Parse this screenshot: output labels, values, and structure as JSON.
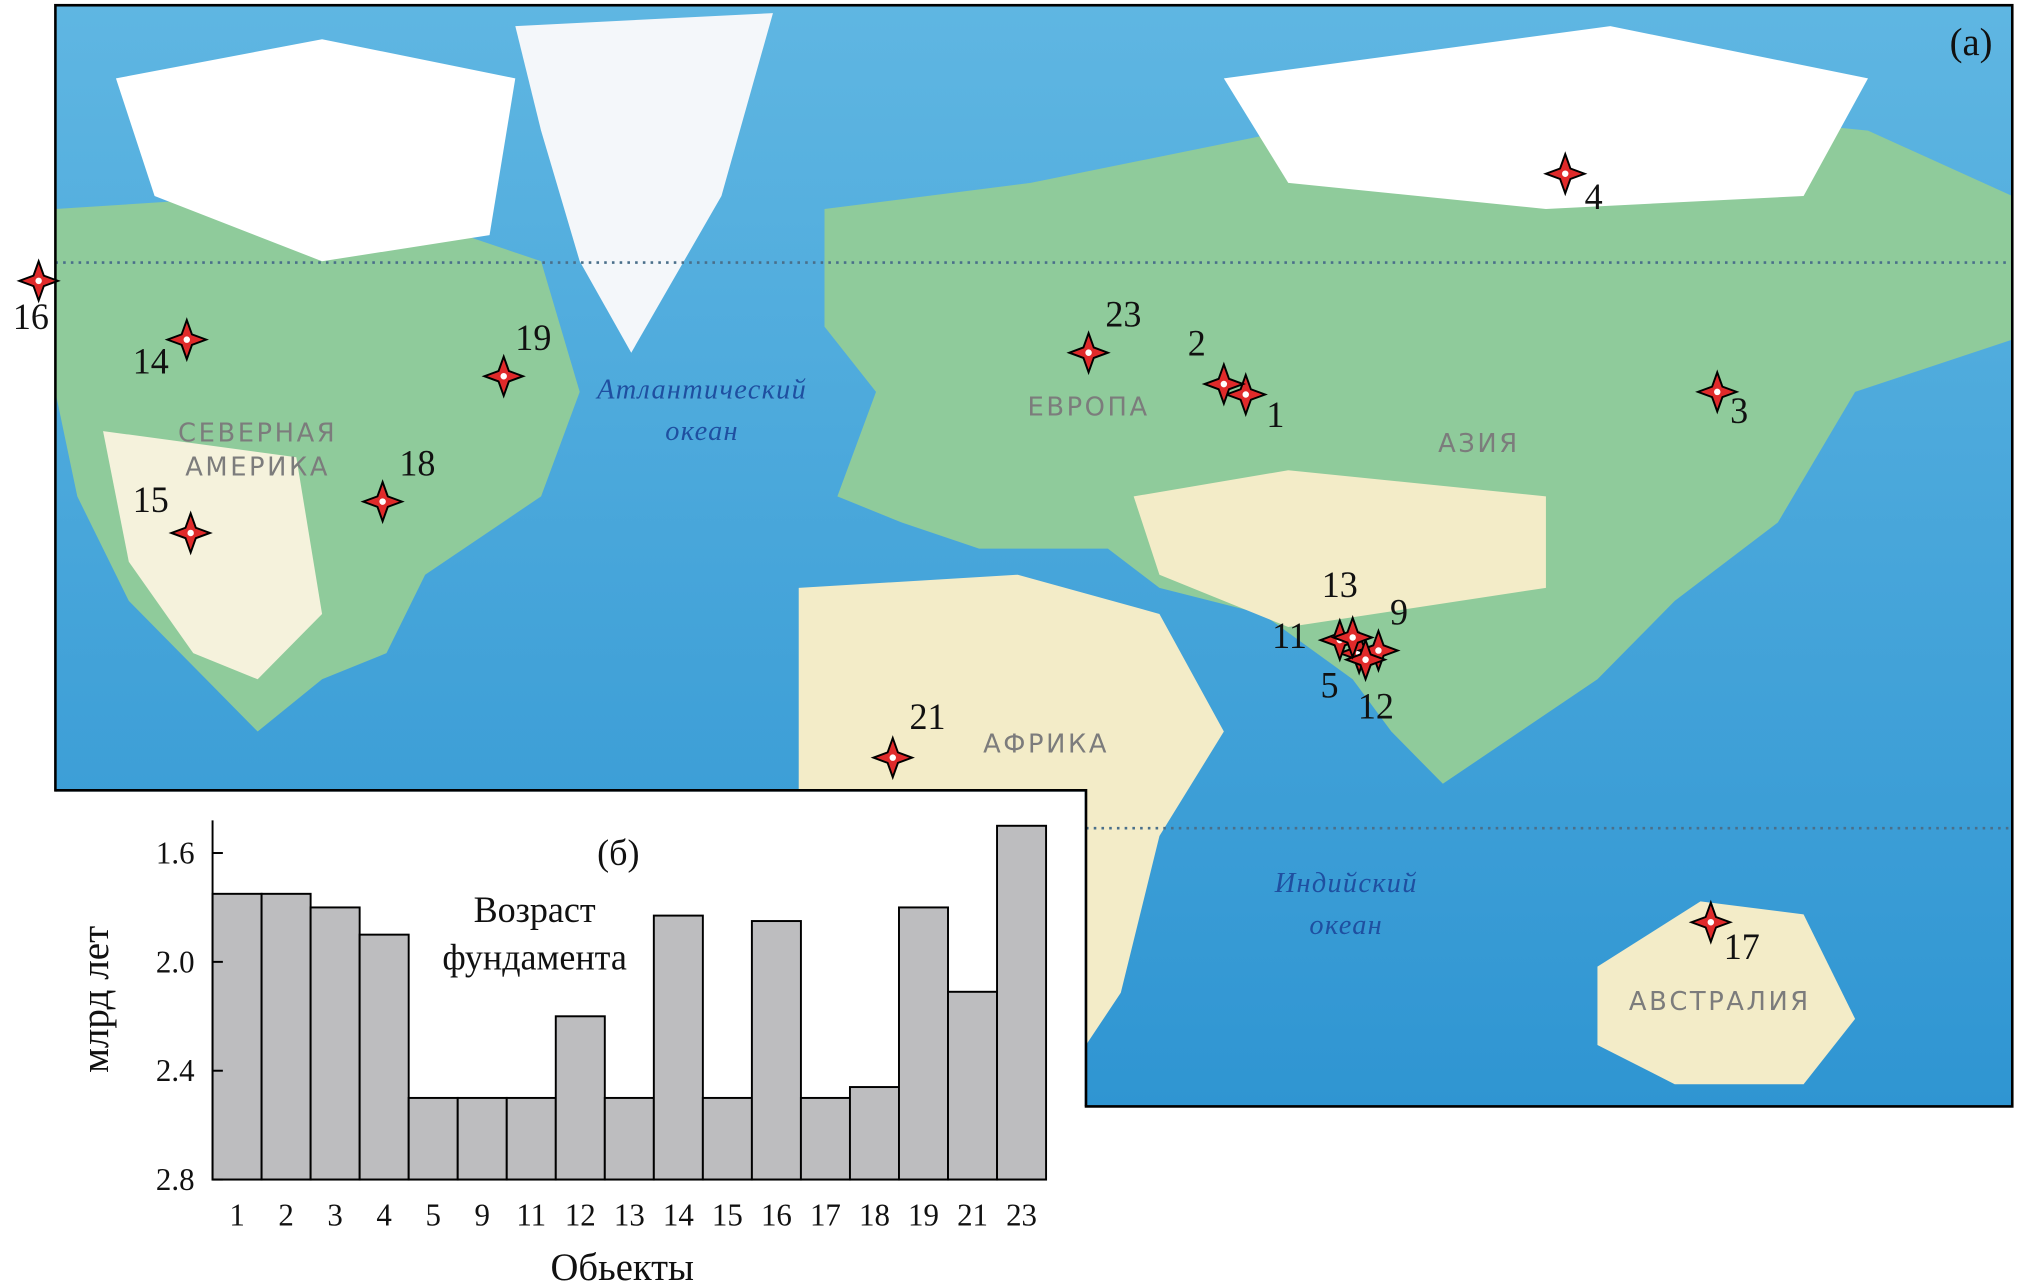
{
  "map": {
    "label": "(a)",
    "regions": [
      [
        "СЕВЕРНАЯ",
        "АМЕРИКА"
      ],
      [
        "ЕВРОПА"
      ],
      [
        "АЗИЯ"
      ],
      [
        "АФРИКА"
      ],
      [
        "АВСТРАЛИЯ"
      ]
    ],
    "oceans": [
      [
        "Атлантический",
        "океан"
      ],
      [
        "Индийский",
        "океан"
      ]
    ],
    "sites": [
      "1",
      "2",
      "3",
      "4",
      "5",
      "9",
      "11",
      "12",
      "13",
      "14",
      "15",
      "16",
      "17",
      "18",
      "19",
      "21",
      "23"
    ]
  },
  "chart_data": {
    "type": "bar",
    "panel_label": "(б)",
    "annotation": [
      "Возраст",
      "фундамента"
    ],
    "y_label": "млрд лет",
    "x_label": "Обьекты",
    "categories": [
      "1",
      "2",
      "3",
      "4",
      "5",
      "9",
      "11",
      "12",
      "13",
      "14",
      "15",
      "16",
      "17",
      "18",
      "19",
      "21",
      "23"
    ],
    "values": [
      1.75,
      1.75,
      1.8,
      1.9,
      2.5,
      2.5,
      2.5,
      2.2,
      2.5,
      1.83,
      2.5,
      1.85,
      2.5,
      2.46,
      1.8,
      2.11,
      1.5
    ],
    "color": "#bdbdbf",
    "ylim": [
      2.8,
      1.48
    ],
    "yticks": [
      1.6,
      {
        "value": 2,
        "label": "2.0"
      },
      2.4,
      2.8
    ]
  }
}
